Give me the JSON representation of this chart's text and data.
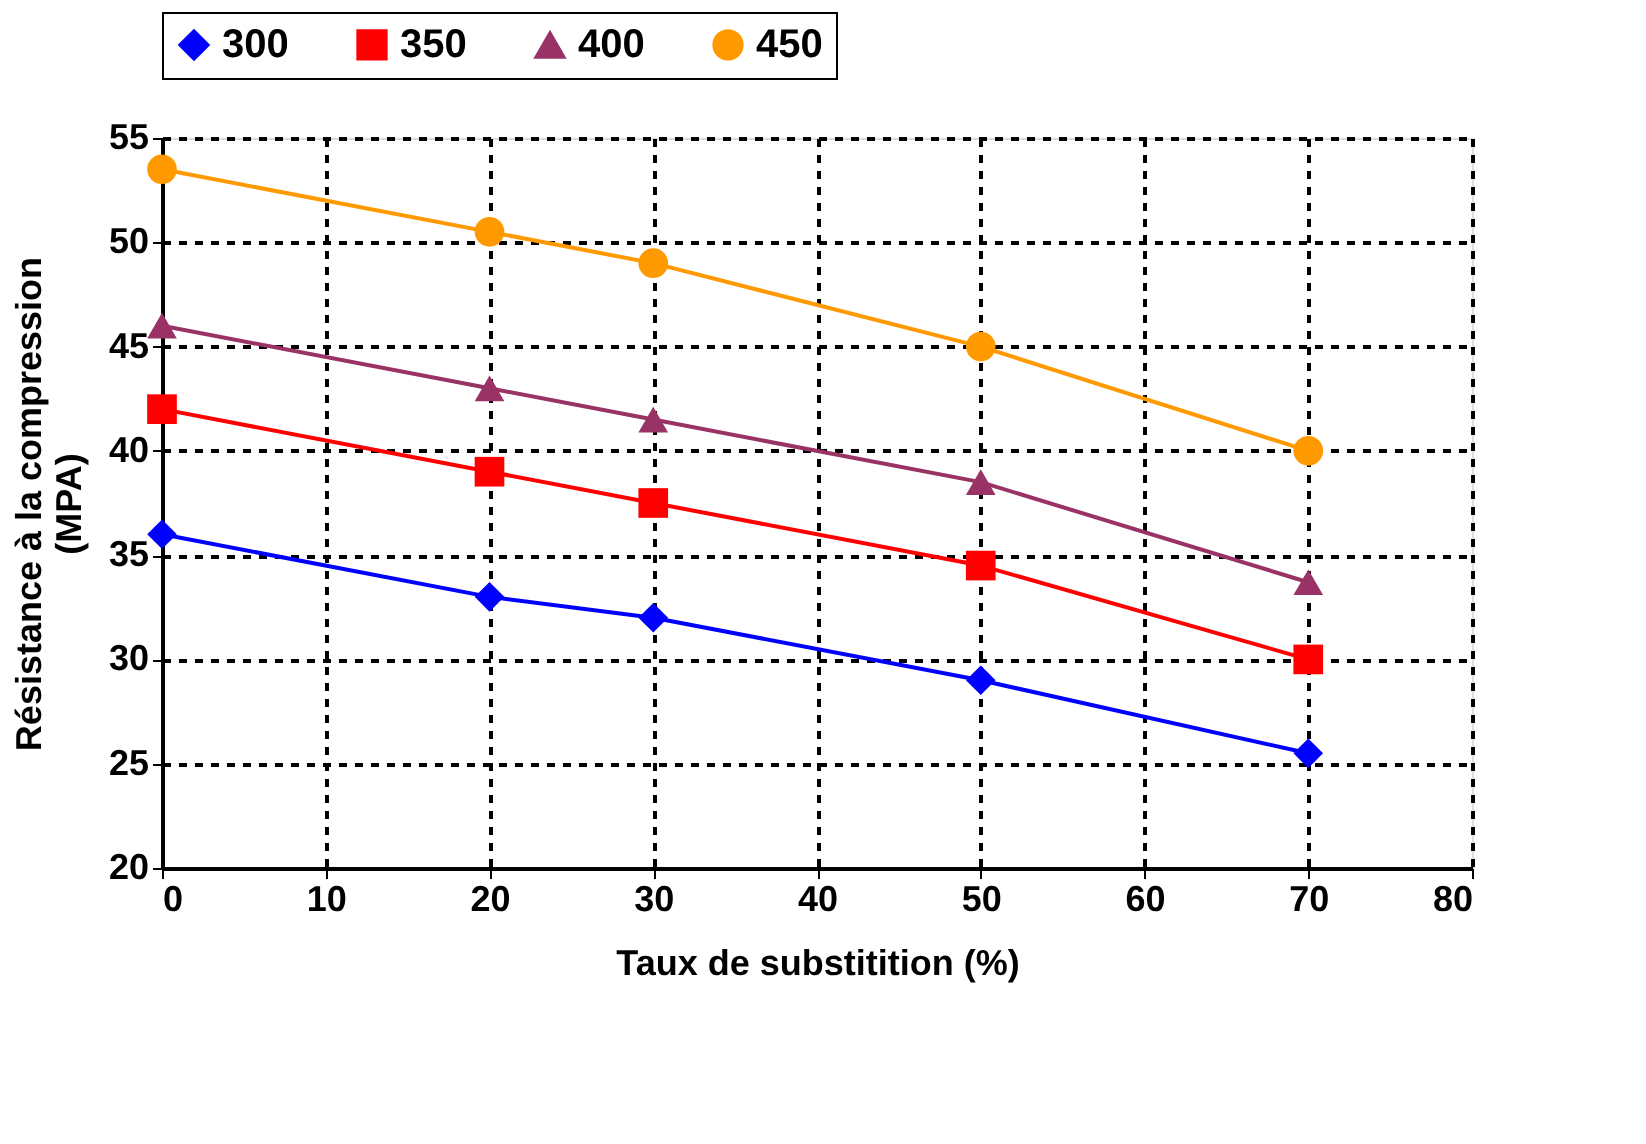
{
  "chart_data": {
    "type": "line",
    "xlabel": "Taux de substitition (%)",
    "ylabel": "Résistance à la compression\n(MPA)",
    "x": [
      0,
      20,
      30,
      50,
      70
    ],
    "series": [
      {
        "name": "300",
        "color": "#0000ff",
        "marker": "diamond",
        "values": [
          36,
          33,
          32,
          29,
          25.5
        ]
      },
      {
        "name": "350",
        "color": "#ff0000",
        "marker": "square",
        "values": [
          42,
          39,
          37.5,
          34.5,
          30
        ]
      },
      {
        "name": "400",
        "color": "#993366",
        "marker": "triangle",
        "values": [
          46,
          43,
          41.5,
          38.5,
          33.7
        ]
      },
      {
        "name": "450",
        "color": "#ff9900",
        "marker": "circle",
        "values": [
          53.5,
          50.5,
          49,
          45,
          40
        ]
      }
    ],
    "xlim": [
      0,
      80
    ],
    "xticks": [
      0,
      10,
      20,
      30,
      40,
      50,
      60,
      70,
      80
    ],
    "ylim": [
      20,
      55
    ],
    "yticks": [
      20,
      25,
      30,
      35,
      40,
      45,
      50,
      55
    ],
    "grid": true,
    "legend": "top",
    "line_style": "solid"
  }
}
